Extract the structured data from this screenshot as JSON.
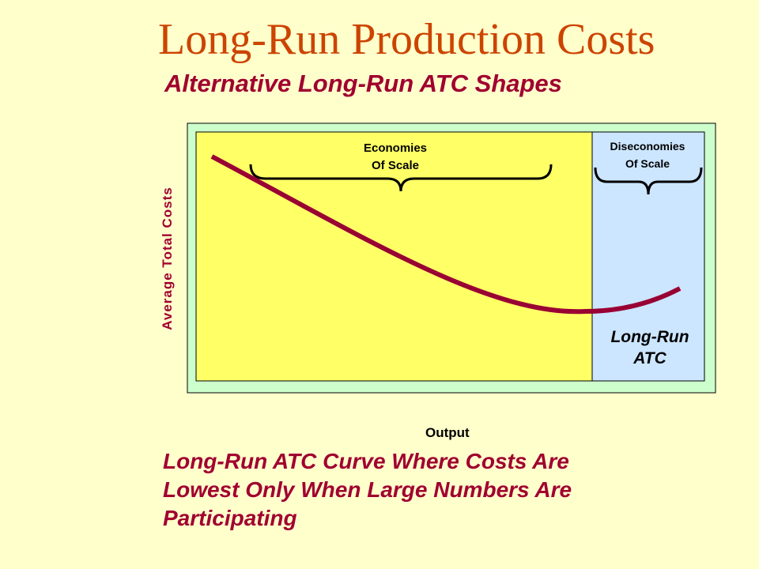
{
  "title": "Long-Run Production Costs",
  "subtitle": "Alternative Long-Run ATC Shapes",
  "diagram": {
    "y_axis_label": "Average Total Costs",
    "x_axis_label": "Output",
    "economies_label_line1": "Economies",
    "economies_label_line2": "Of Scale",
    "diseconomies_label_line1": "Diseconomies",
    "diseconomies_label_line2": "Of Scale",
    "curve_label_line1": "Long-Run",
    "curve_label_line2": "ATC",
    "colors": {
      "outer_panel": "#ccffcc",
      "economies_region": "#ffff66",
      "diseconomies_region": "#cce6ff",
      "curve": "#990033"
    }
  },
  "caption": {
    "line1": "Long-Run ATC Curve Where Costs Are",
    "line2": "Lowest Only When Large Numbers Are",
    "line3": "Participating"
  }
}
